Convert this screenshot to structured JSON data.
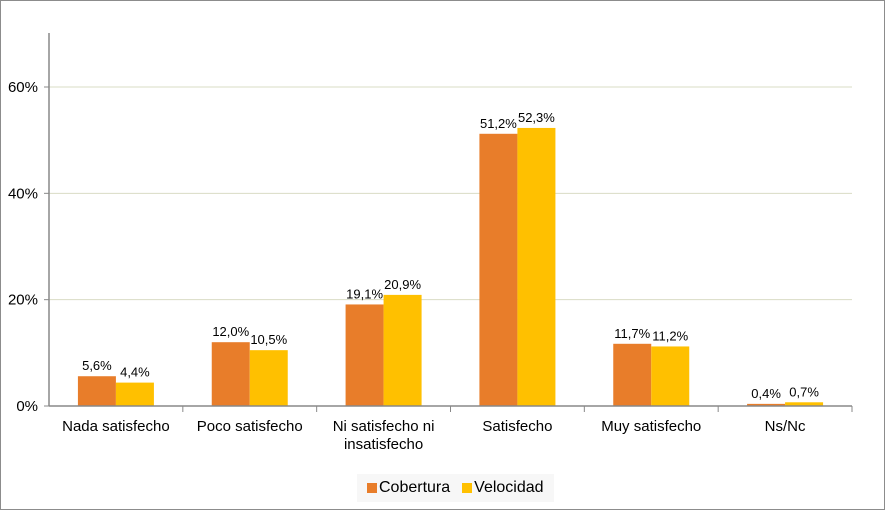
{
  "chart_data": {
    "type": "bar",
    "categories": [
      "Nada satisfecho",
      "Poco satisfecho",
      "Ni satisfecho ni insatisfecho",
      "Satisfecho",
      "Muy satisfecho",
      "Ns/Nc"
    ],
    "category_lines": [
      [
        "Nada satisfecho"
      ],
      [
        "Poco satisfecho"
      ],
      [
        "Ni satisfecho ni",
        "insatisfecho"
      ],
      [
        "Satisfecho"
      ],
      [
        "Muy satisfecho"
      ],
      [
        "Ns/Nc"
      ]
    ],
    "series": [
      {
        "name": "Cobertura",
        "color": "#e87d2a",
        "values": [
          5.6,
          12.0,
          19.1,
          51.2,
          11.7,
          0.4
        ],
        "labels": [
          "5,6%",
          "12,0%",
          "19,1%",
          "51,2%",
          "11,7%",
          "0,4%"
        ]
      },
      {
        "name": "Velocidad",
        "color": "#ffc000",
        "values": [
          4.4,
          10.5,
          20.9,
          52.3,
          11.2,
          0.7
        ],
        "labels": [
          "4,4%",
          "10,5%",
          "20,9%",
          "52,3%",
          "11,2%",
          "0,7%"
        ]
      }
    ],
    "yticks": [
      "0%",
      "20%",
      "40%",
      "60%"
    ],
    "ytick_values": [
      0,
      20,
      40,
      60
    ],
    "ylim": [
      0,
      70
    ],
    "grid": true,
    "gridline_color": "#d9dcc4",
    "legend_position": "bottom",
    "title": "",
    "xlabel": "",
    "ylabel": ""
  }
}
